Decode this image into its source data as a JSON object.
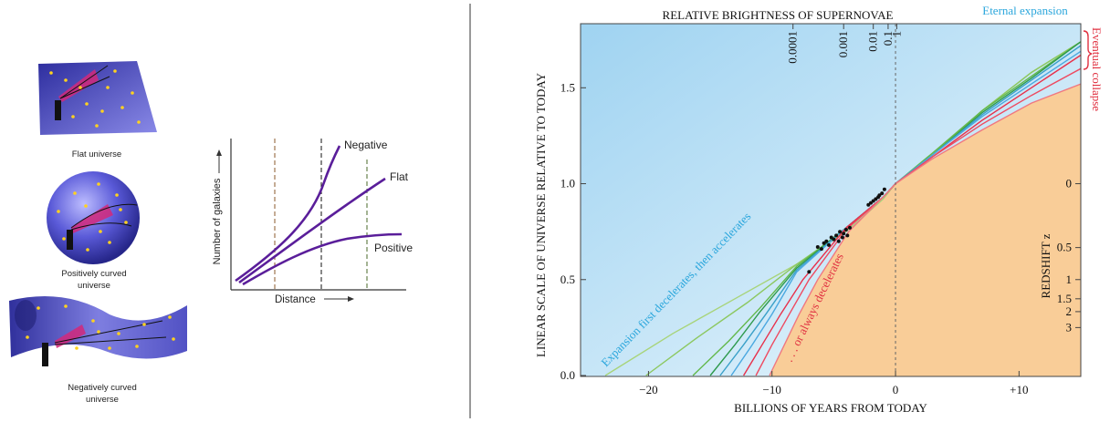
{
  "universes": {
    "flat_label": "Flat universe",
    "positive_label_1": "Positively curved",
    "positive_label_2": "universe",
    "negative_label_1": "Negatively curved",
    "negative_label_2": "universe"
  },
  "galaxy_count_chart": {
    "ylabel": "Number of galaxies",
    "xlabel": "Distance",
    "curves": [
      {
        "name": "Negative"
      },
      {
        "name": "Flat"
      },
      {
        "name": "Positive"
      }
    ]
  },
  "chart_data": {
    "type": "line",
    "title": "RELATIVE BRIGHTNESS OF SUPERNOVAE",
    "xlabel": "BILLIONS OF YEARS FROM TODAY",
    "ylabel": "LINEAR SCALE OF UNIVERSE RELATIVE TO TODAY",
    "right_axis_label": "REDSHIFT z",
    "xlim": [
      -25.5,
      15
    ],
    "ylim": [
      0.0,
      1.72
    ],
    "x_ticks": [
      {
        "v": -20,
        "label": "−20"
      },
      {
        "v": -10,
        "label": "−10"
      },
      {
        "v": 0,
        "label": "0"
      },
      {
        "v": 10,
        "label": "+10"
      }
    ],
    "y_ticks": [
      {
        "v": 0.0,
        "label": "0.0"
      },
      {
        "v": 0.5,
        "label": "0.5"
      },
      {
        "v": 1.0,
        "label": "1.0"
      },
      {
        "v": 1.5,
        "label": "1.5"
      }
    ],
    "brightness_ticks": [
      {
        "label": "0.0001",
        "x": -8.3
      },
      {
        "label": "0.001",
        "x": -4.2
      },
      {
        "label": "0.01",
        "x": -1.8
      },
      {
        "label": "0.1",
        "x": -0.6
      },
      {
        "label": "1",
        "x": 0.1
      }
    ],
    "redshift_ticks": [
      {
        "label": "0",
        "y": 1.0
      },
      {
        "label": "0.5",
        "y": 0.667
      },
      {
        "label": "1",
        "y": 0.5
      },
      {
        "label": "1.5",
        "y": 0.4
      },
      {
        "label": "2",
        "y": 0.333
      },
      {
        "label": "3",
        "y": 0.25
      }
    ],
    "annotations": {
      "eternal_expansion": "Eternal expansion",
      "eventual_collapse": "Eventual collapse",
      "accelerating": "Expansion first decelerates, then accelerates",
      "decelerating": ". . . or always decelerates"
    },
    "colors": {
      "accelerating_region": "#bfe2f5",
      "decelerating_region": "#f9cd98",
      "accelerating_text": "#2aa6dc",
      "decelerating_text": "#e03040"
    },
    "series": [
      {
        "x": [
          -23.5,
          -18,
          -13,
          -8,
          -4,
          -1,
          0,
          3,
          7,
          11,
          15
        ],
        "y": [
          0.0,
          0.22,
          0.4,
          0.58,
          0.75,
          0.92,
          1.0,
          1.15,
          1.38,
          1.58,
          1.74
        ],
        "color": "#a8d47a"
      },
      {
        "x": [
          -20.2,
          -16,
          -12,
          -8,
          -4,
          -1,
          0,
          3,
          7,
          11,
          15
        ],
        "y": [
          0.0,
          0.2,
          0.38,
          0.58,
          0.76,
          0.93,
          1.0,
          1.15,
          1.38,
          1.58,
          1.74
        ],
        "color": "#8cc860"
      },
      {
        "x": [
          -16.4,
          -13.5,
          -11,
          -8,
          -4,
          -1,
          0,
          3,
          7,
          11,
          15
        ],
        "y": [
          0.0,
          0.18,
          0.35,
          0.57,
          0.77,
          0.93,
          1.0,
          1.16,
          1.38,
          1.56,
          1.74
        ],
        "color": "#62b84a"
      },
      {
        "x": [
          -15.0,
          -13,
          -11,
          -8,
          -4,
          -1,
          0,
          3,
          7,
          11,
          15
        ],
        "y": [
          0.0,
          0.16,
          0.33,
          0.56,
          0.77,
          0.93,
          1.0,
          1.15,
          1.37,
          1.55,
          1.74
        ],
        "color": "#2e9a4c"
      },
      {
        "x": [
          -14.2,
          -12.3,
          -10.5,
          -8,
          -4,
          -1,
          0,
          3,
          7,
          11,
          15
        ],
        "y": [
          0.0,
          0.16,
          0.32,
          0.55,
          0.77,
          0.93,
          1.0,
          1.15,
          1.36,
          1.54,
          1.72
        ],
        "color": "#3aa0c8"
      },
      {
        "x": [
          -13.3,
          -11.6,
          -10.0,
          -8,
          -4,
          -1,
          0,
          3,
          7,
          11,
          15
        ],
        "y": [
          0.0,
          0.16,
          0.32,
          0.54,
          0.77,
          0.93,
          1.0,
          1.15,
          1.35,
          1.52,
          1.69
        ],
        "color": "#4aa8e0"
      },
      {
        "x": [
          -12.3,
          -10.8,
          -9.3,
          -7.5,
          -4,
          -1,
          0,
          3,
          7,
          11,
          15
        ],
        "y": [
          0.0,
          0.16,
          0.32,
          0.5,
          0.77,
          0.93,
          1.0,
          1.14,
          1.33,
          1.5,
          1.67
        ],
        "color": "#e8304a"
      },
      {
        "x": [
          -11.3,
          -10.0,
          -8.6,
          -7,
          -4,
          -1,
          0,
          3,
          7,
          11,
          15
        ],
        "y": [
          0.0,
          0.16,
          0.32,
          0.5,
          0.76,
          0.93,
          1.0,
          1.14,
          1.31,
          1.46,
          1.6
        ],
        "color": "#ee4a60"
      },
      {
        "x": [
          -10.2,
          -9.0,
          -7.8,
          -6.3,
          -3.8,
          -1,
          0,
          3,
          7,
          11,
          15
        ],
        "y": [
          0.0,
          0.16,
          0.32,
          0.5,
          0.75,
          0.93,
          1.0,
          1.13,
          1.28,
          1.42,
          1.52
        ],
        "color": "#f07880"
      }
    ],
    "supernova_points": {
      "x": [
        -6.3,
        -6.0,
        -5.8,
        -5.6,
        -5.4,
        -5.2,
        -5.0,
        -4.8,
        -4.6,
        -4.5,
        -4.3,
        -4.2,
        -4.0,
        -3.9,
        -3.7,
        -2.2,
        -2.0,
        -1.8,
        -1.6,
        -1.4,
        -1.3,
        -1.1,
        -0.9,
        -7.0
      ],
      "y": [
        0.67,
        0.66,
        0.69,
        0.7,
        0.68,
        0.72,
        0.71,
        0.73,
        0.7,
        0.75,
        0.72,
        0.74,
        0.76,
        0.73,
        0.77,
        0.89,
        0.9,
        0.91,
        0.92,
        0.93,
        0.94,
        0.95,
        0.97,
        0.54
      ]
    }
  }
}
